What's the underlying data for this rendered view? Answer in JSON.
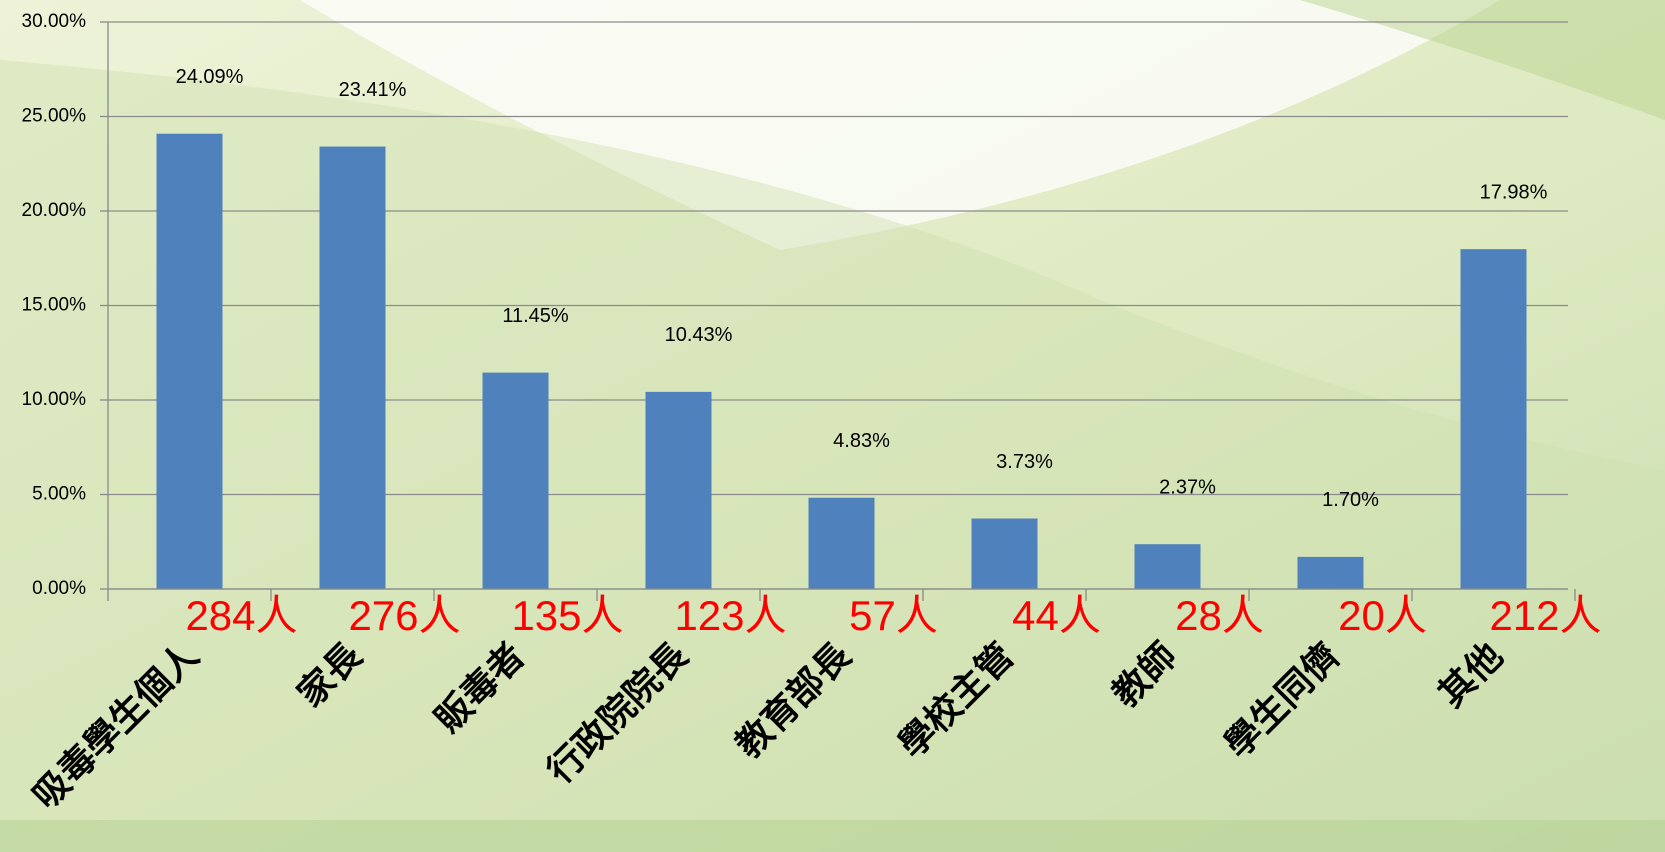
{
  "chart_data": {
    "type": "bar",
    "categories": [
      "吸毒學生個人",
      "家長",
      "販毒者",
      "行政院院長",
      "教育部長",
      "學校主管",
      "教師",
      "學生同儕",
      "其他"
    ],
    "values": [
      24.09,
      23.41,
      11.45,
      10.43,
      4.83,
      3.73,
      2.37,
      1.7,
      17.98
    ],
    "value_labels": [
      "24.09%",
      "23.41%",
      "11.45%",
      "10.43%",
      "4.83%",
      "3.73%",
      "2.37%",
      "1.70%",
      "17.98%"
    ],
    "annotations": [
      "284人",
      "276人",
      "135人",
      "123人",
      "57人",
      "44人",
      "28人",
      "20人",
      "212人"
    ],
    "color": "#4f81bd",
    "annotation_color": "#ff0000",
    "ylim": [
      0,
      30
    ],
    "yticks": [
      {
        "value": 0,
        "label": "0.00%"
      },
      {
        "value": 5,
        "label": "5.00%"
      },
      {
        "value": 10,
        "label": "10.00%"
      },
      {
        "value": 15,
        "label": "15.00%"
      },
      {
        "value": 20,
        "label": "20.00%"
      },
      {
        "value": 25,
        "label": "25.00%"
      },
      {
        "value": 30,
        "label": "30.00%"
      }
    ],
    "grid": true
  }
}
